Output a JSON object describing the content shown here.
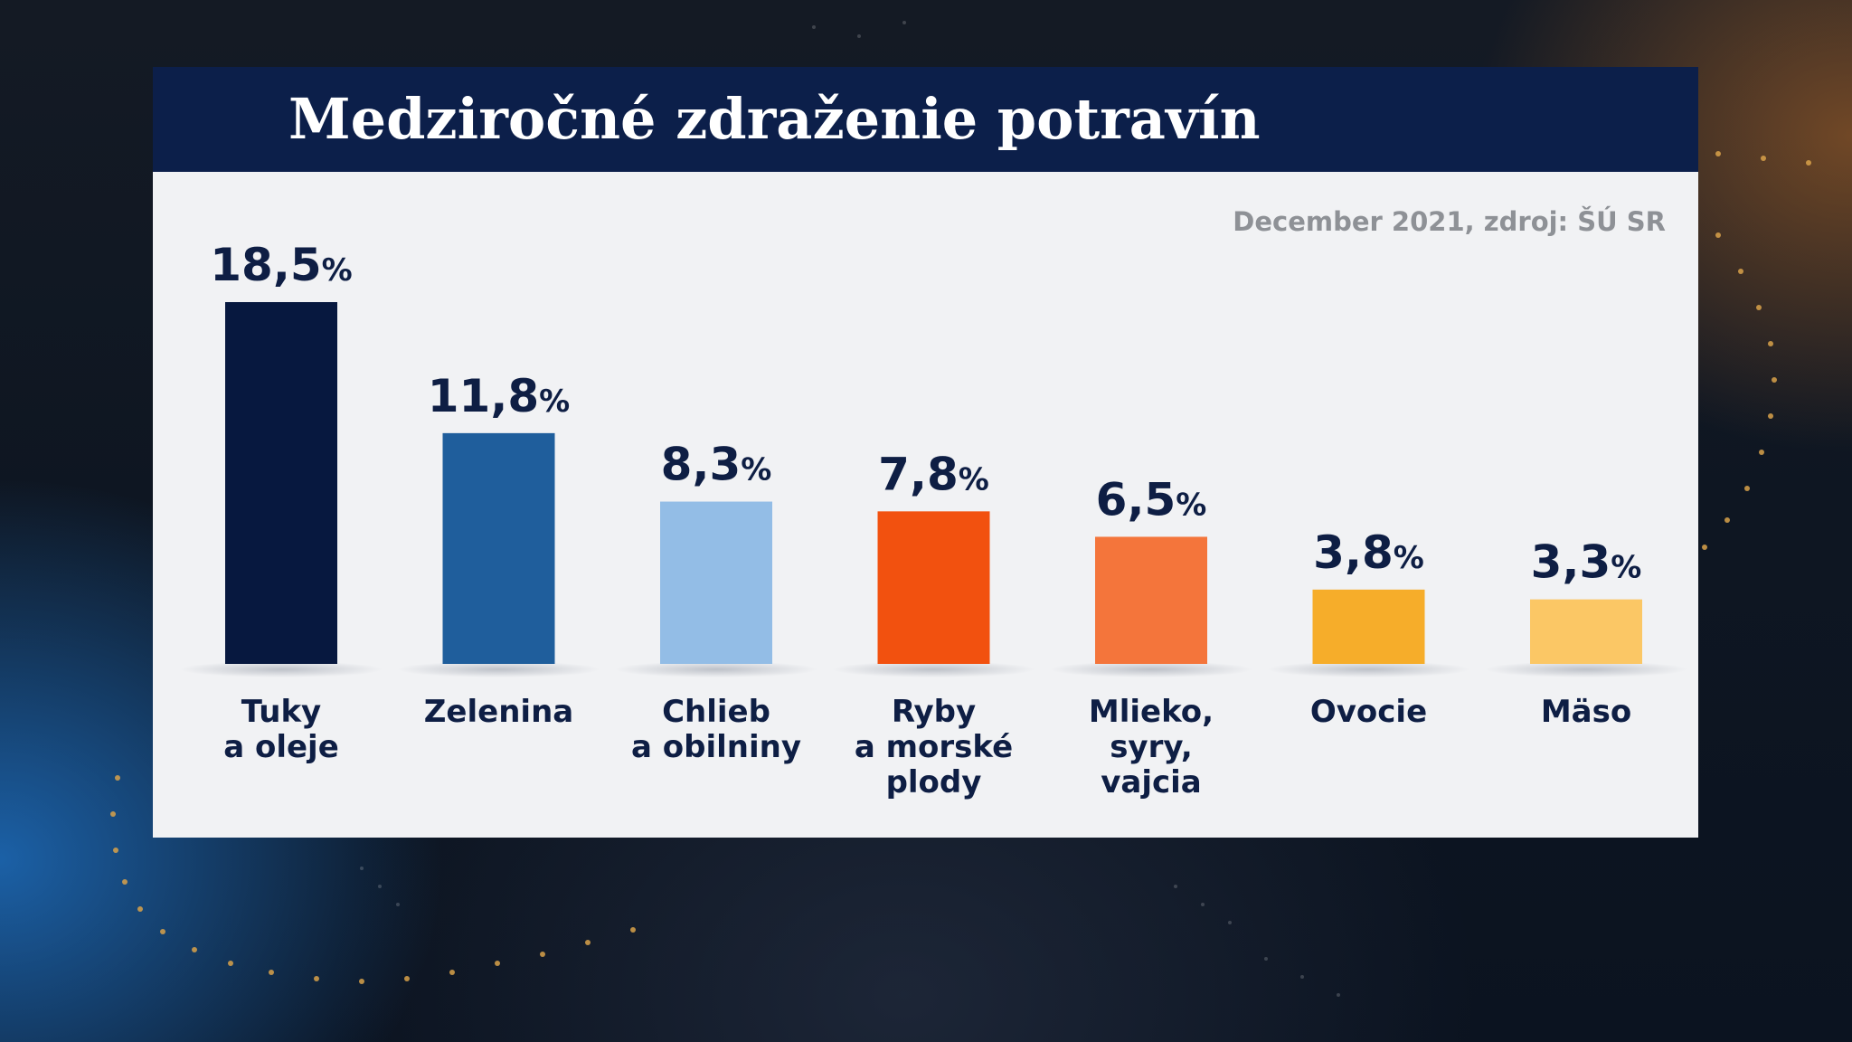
{
  "chart_data": {
    "type": "bar",
    "title": "Medziročné zdraženie potravín",
    "subtitle": "December 2021, zdroj: ŠÚ SR",
    "unit": "%",
    "categories": [
      [
        "Tuky",
        "a oleje"
      ],
      [
        "Zelenina"
      ],
      [
        "Chlieb",
        "a obilniny"
      ],
      [
        "Ryby",
        "a morské",
        "plody"
      ],
      [
        "Mlieko,",
        "syry,",
        "vajcia"
      ],
      [
        "Ovocie"
      ],
      [
        "Mäso"
      ]
    ],
    "values": [
      18.5,
      11.8,
      8.3,
      7.8,
      6.5,
      3.8,
      3.3
    ],
    "value_labels": [
      "18,5",
      "11,8",
      "8,3",
      "7,8",
      "6,5",
      "3,8",
      "3,3"
    ],
    "colors": [
      "#07183f",
      "#1f5e9c",
      "#93bde6",
      "#f2510f",
      "#f4753b",
      "#f6ad2a",
      "#fbc765"
    ],
    "ylim": [
      0,
      18.5
    ],
    "grid": false,
    "legend": "none"
  }
}
